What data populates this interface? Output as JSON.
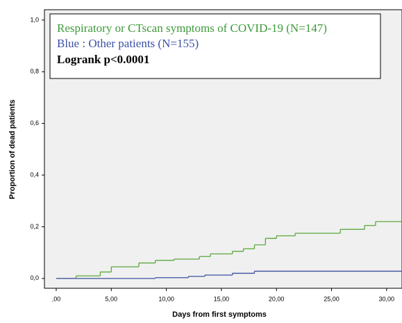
{
  "chart_data": {
    "type": "step",
    "y_label": "Proportion of dead patients",
    "x_label": "Days from first symptoms",
    "legend_lines": [
      "Respiratory or CTscan symptoms of COVID-19 (N=147)",
      "Blue : Other patients (N=155)"
    ],
    "annotation": "Logrank p<0.0001",
    "series": [
      {
        "name": "Respiratory or CTscan symptoms of COVID-19 (N=147)",
        "color": "#5aa83c",
        "x": [
          0,
          1.8,
          4,
          5,
          7.5,
          9,
          10.7,
          13,
          14,
          16,
          17,
          18,
          19,
          20,
          21.7,
          25.8,
          28,
          29
        ],
        "values": [
          0,
          0.01,
          0.025,
          0.045,
          0.06,
          0.07,
          0.075,
          0.085,
          0.095,
          0.105,
          0.115,
          0.13,
          0.155,
          0.165,
          0.175,
          0.19,
          0.205,
          0.22
        ]
      },
      {
        "name": "Blue : Other patients (N=155)",
        "color": "#3a4fa0",
        "x": [
          0,
          9,
          12,
          13.5,
          16,
          18
        ],
        "values": [
          0,
          0.003,
          0.008,
          0.013,
          0.02,
          0.028
        ]
      }
    ],
    "xlim": [
      -1.07,
      31.4
    ],
    "ylim": [
      -0.038,
      1.04
    ],
    "xticks": [
      {
        "value": 0,
        "label": ",00"
      },
      {
        "value": 5,
        "label": "5,00"
      },
      {
        "value": 10,
        "label": "10,00"
      },
      {
        "value": 15,
        "label": "15,00"
      },
      {
        "value": 20,
        "label": "20,00"
      },
      {
        "value": 25,
        "label": "25,00"
      },
      {
        "value": 30,
        "label": "30,00"
      }
    ],
    "yticks": [
      {
        "value": 0,
        "label": "0,0"
      },
      {
        "value": 0.2,
        "label": "0,2"
      },
      {
        "value": 0.4,
        "label": "0,4"
      },
      {
        "value": 0.6,
        "label": "0,6"
      },
      {
        "value": 0.8,
        "label": "0,8"
      },
      {
        "value": 1,
        "label": "1,0"
      }
    ]
  }
}
